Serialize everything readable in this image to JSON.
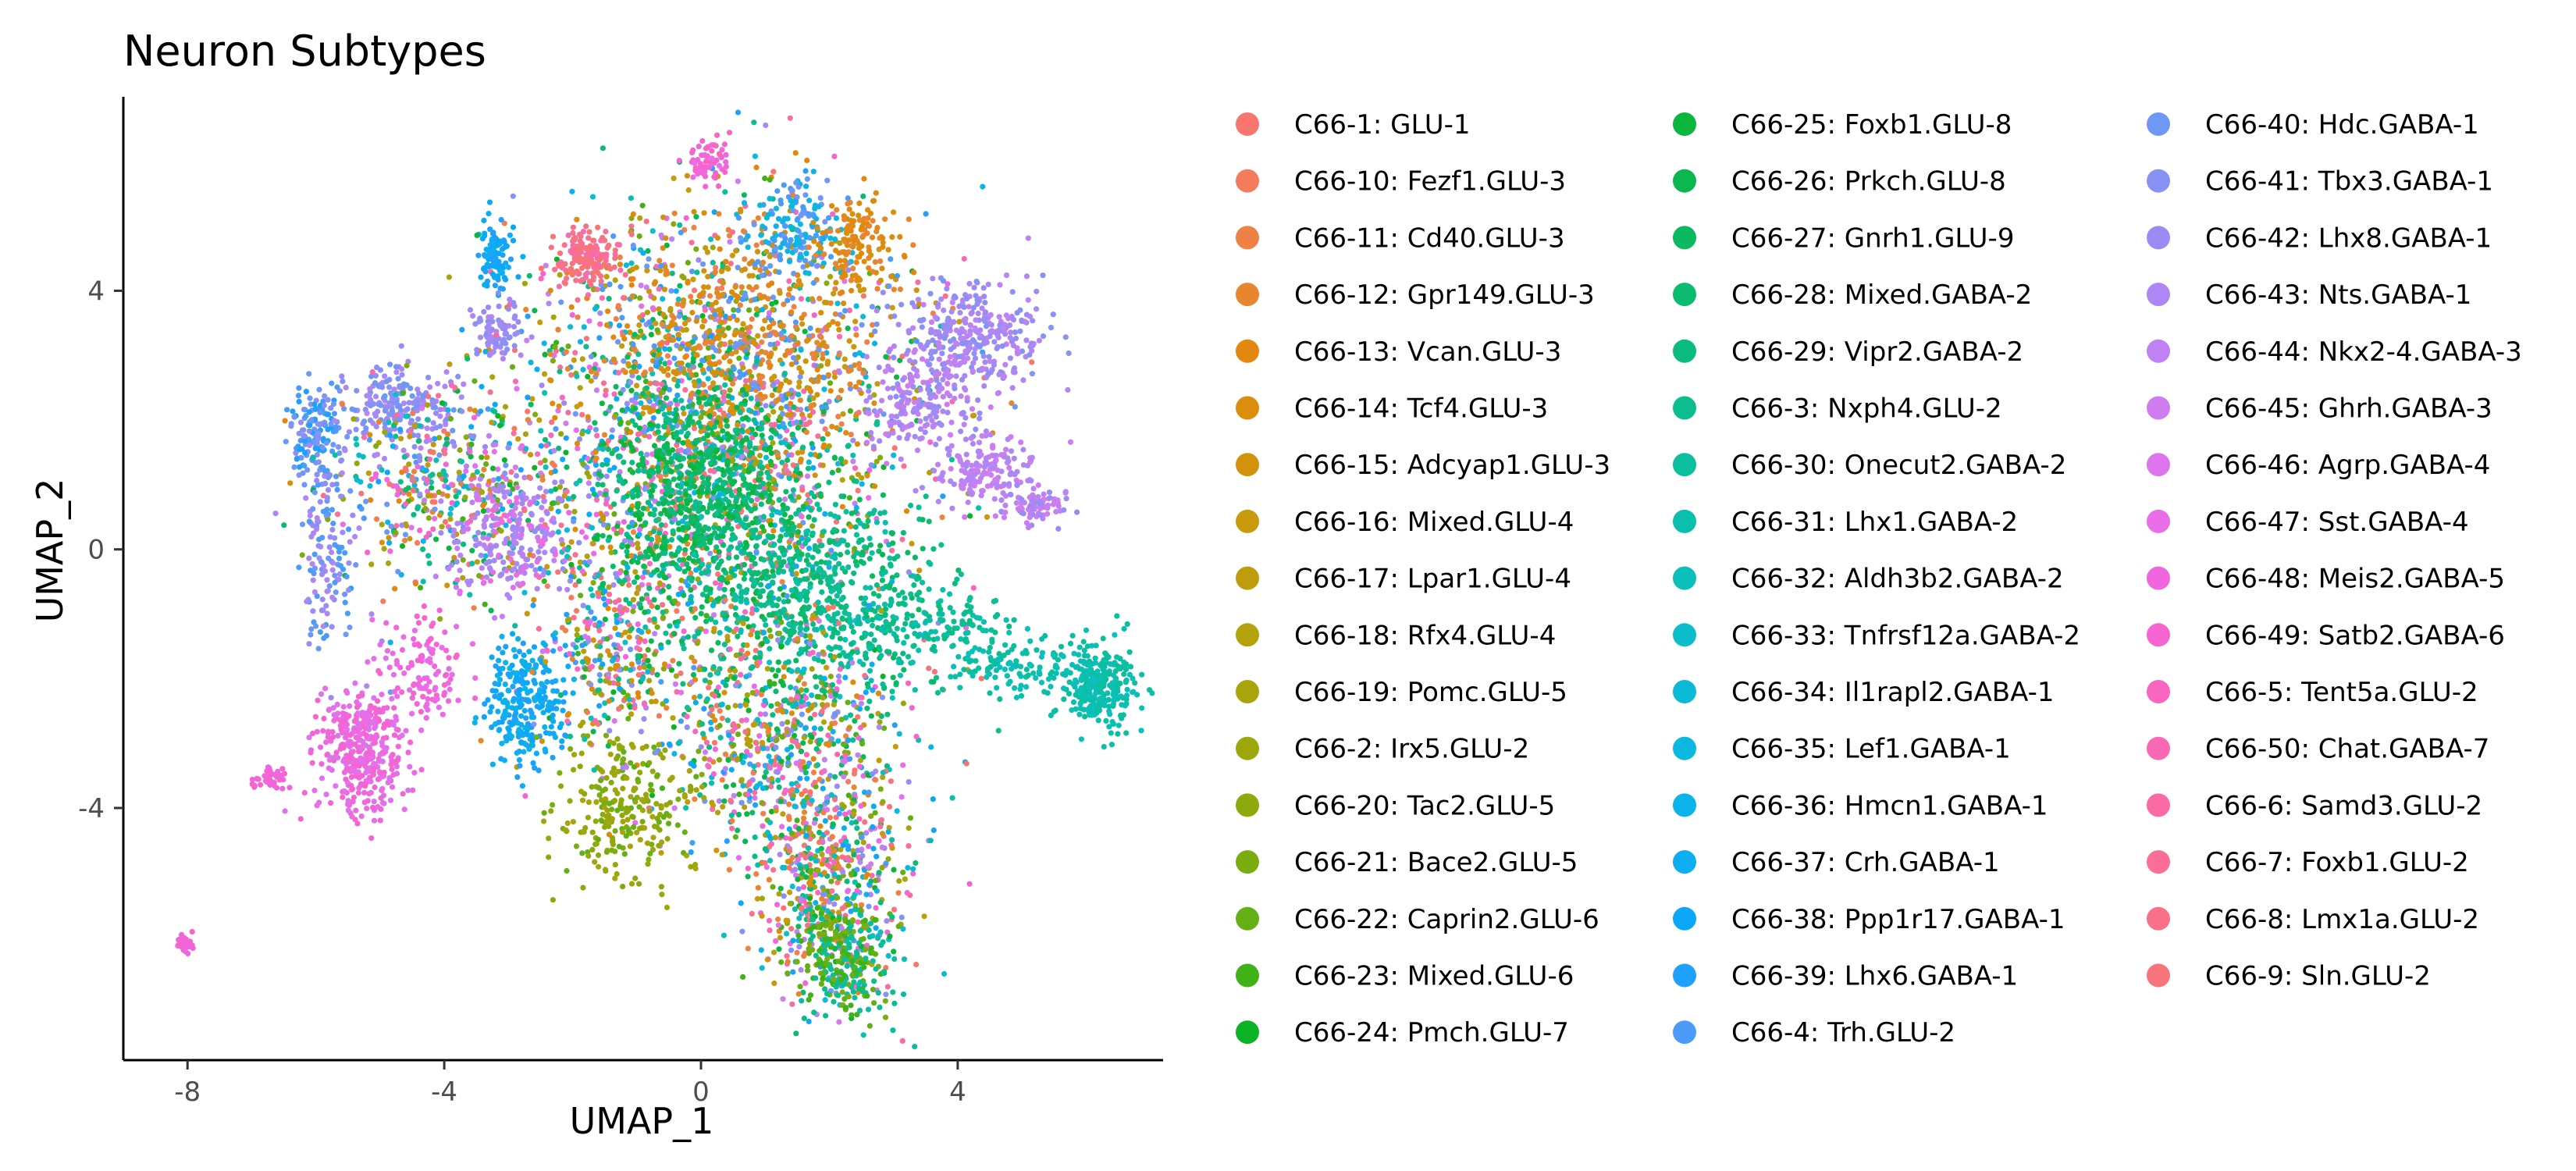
{
  "chart_data": {
    "type": "scatter",
    "title": "Neuron Subtypes",
    "xlabel": "UMAP_1",
    "ylabel": "UMAP_2",
    "xlim": [
      -9.0,
      7.2
    ],
    "ylim": [
      -7.9,
      7.0
    ],
    "x_ticks": [
      -8,
      -4,
      0,
      4
    ],
    "y_ticks": [
      -4,
      0,
      4
    ],
    "grid": false,
    "legend_placement": "right",
    "legend_columns": 3,
    "series": [
      {
        "name": "C66-1: GLU-1",
        "color": "#F8766D"
      },
      {
        "name": "C66-10: Fezf1.GLU-3",
        "color": "#F47C5D"
      },
      {
        "name": "C66-11: Cd40.GLU-3",
        "color": "#EE8244"
      },
      {
        "name": "C66-12: Gpr149.GLU-3",
        "color": "#E8852F"
      },
      {
        "name": "C66-13: Vcan.GLU-3",
        "color": "#E2880F"
      },
      {
        "name": "C66-14: Tcf4.GLU-3",
        "color": "#DB8D0C"
      },
      {
        "name": "C66-15: Adcyap1.GLU-3",
        "color": "#D2920C"
      },
      {
        "name": "C66-16: Mixed.GLU-4",
        "color": "#C99A0C"
      },
      {
        "name": "C66-17: Lpar1.GLU-4",
        "color": "#BE9C0C"
      },
      {
        "name": "C66-18: Rfx4.GLU-4",
        "color": "#B3A20C"
      },
      {
        "name": "C66-19: Pomc.GLU-5",
        "color": "#A8A40C"
      },
      {
        "name": "C66-2: Irx5.GLU-2",
        "color": "#9CA70C"
      },
      {
        "name": "C66-20: Tac2.GLU-5",
        "color": "#8DA90C"
      },
      {
        "name": "C66-21: Bace2.GLU-5",
        "color": "#7BAD10"
      },
      {
        "name": "C66-22: Caprin2.GLU-6",
        "color": "#62B014"
      },
      {
        "name": "C66-23: Mixed.GLU-6",
        "color": "#3FB218"
      },
      {
        "name": "C66-24: Pmch.GLU-7",
        "color": "#0BB325"
      },
      {
        "name": "C66-25: Foxb1.GLU-8",
        "color": "#0BB63C"
      },
      {
        "name": "C66-26: Prkch.GLU-8",
        "color": "#0BB84F"
      },
      {
        "name": "C66-27: Gnrh1.GLU-9",
        "color": "#0BBA60"
      },
      {
        "name": "C66-28: Mixed.GABA-2",
        "color": "#0BBB70"
      },
      {
        "name": "C66-29: Vipr2.GABA-2",
        "color": "#0BBC80"
      },
      {
        "name": "C66-3: Nxph4.GLU-2",
        "color": "#0BBD8F"
      },
      {
        "name": "C66-30: Onecut2.GABA-2",
        "color": "#0BBE9E"
      },
      {
        "name": "C66-31: Lhx1.GABA-2",
        "color": "#0BBFAD"
      },
      {
        "name": "C66-32: Aldh3b2.GABA-2",
        "color": "#0BBFBB"
      },
      {
        "name": "C66-33: Tnfrsf12a.GABA-2",
        "color": "#0BBEC9"
      },
      {
        "name": "C66-34: Il1rapl2.GABA-1",
        "color": "#0BBBD5"
      },
      {
        "name": "C66-35: Lef1.GABA-1",
        "color": "#0BB8E0"
      },
      {
        "name": "C66-36: Hmcn1.GABA-1",
        "color": "#0BB3EA"
      },
      {
        "name": "C66-37: Crh.GABA-1",
        "color": "#0BAEF2"
      },
      {
        "name": "C66-38: Ppp1r17.GABA-1",
        "color": "#0BA8F8"
      },
      {
        "name": "C66-39: Lhx6.GABA-1",
        "color": "#1FA0FB"
      },
      {
        "name": "C66-4: Trh.GLU-2",
        "color": "#4B9CF8"
      },
      {
        "name": "C66-40: Hdc.GABA-1",
        "color": "#6F98F6"
      },
      {
        "name": "C66-41: Tbx3.GABA-1",
        "color": "#8792F4"
      },
      {
        "name": "C66-42: Lhx8.GABA-1",
        "color": "#9A8CF4"
      },
      {
        "name": "C66-43: Nts.GABA-1",
        "color": "#AD87F4"
      },
      {
        "name": "C66-44: Nkx2-4.GABA-3",
        "color": "#BF82F4"
      },
      {
        "name": "C66-45: Ghrh.GABA-3",
        "color": "#CF7CF1"
      },
      {
        "name": "C66-46: Agrp.GABA-4",
        "color": "#DD74EE"
      },
      {
        "name": "C66-47: Sst.GABA-4",
        "color": "#E96DE9"
      },
      {
        "name": "C66-48: Meis2.GABA-5",
        "color": "#F066DC"
      },
      {
        "name": "C66-49: Satb2.GABA-6",
        "color": "#F564D0"
      },
      {
        "name": "C66-5: Tent5a.GLU-2",
        "color": "#F866C2"
      },
      {
        "name": "C66-50: Chat.GABA-7",
        "color": "#F969B4"
      },
      {
        "name": "C66-6: Samd3.GLU-2",
        "color": "#FA6BA5"
      },
      {
        "name": "C66-7: Foxb1.GLU-2",
        "color": "#FA6E97"
      },
      {
        "name": "C66-8: Lmx1a.GLU-2",
        "color": "#F97189"
      },
      {
        "name": "C66-9: Sln.GLU-2",
        "color": "#F8747B"
      }
    ]
  }
}
